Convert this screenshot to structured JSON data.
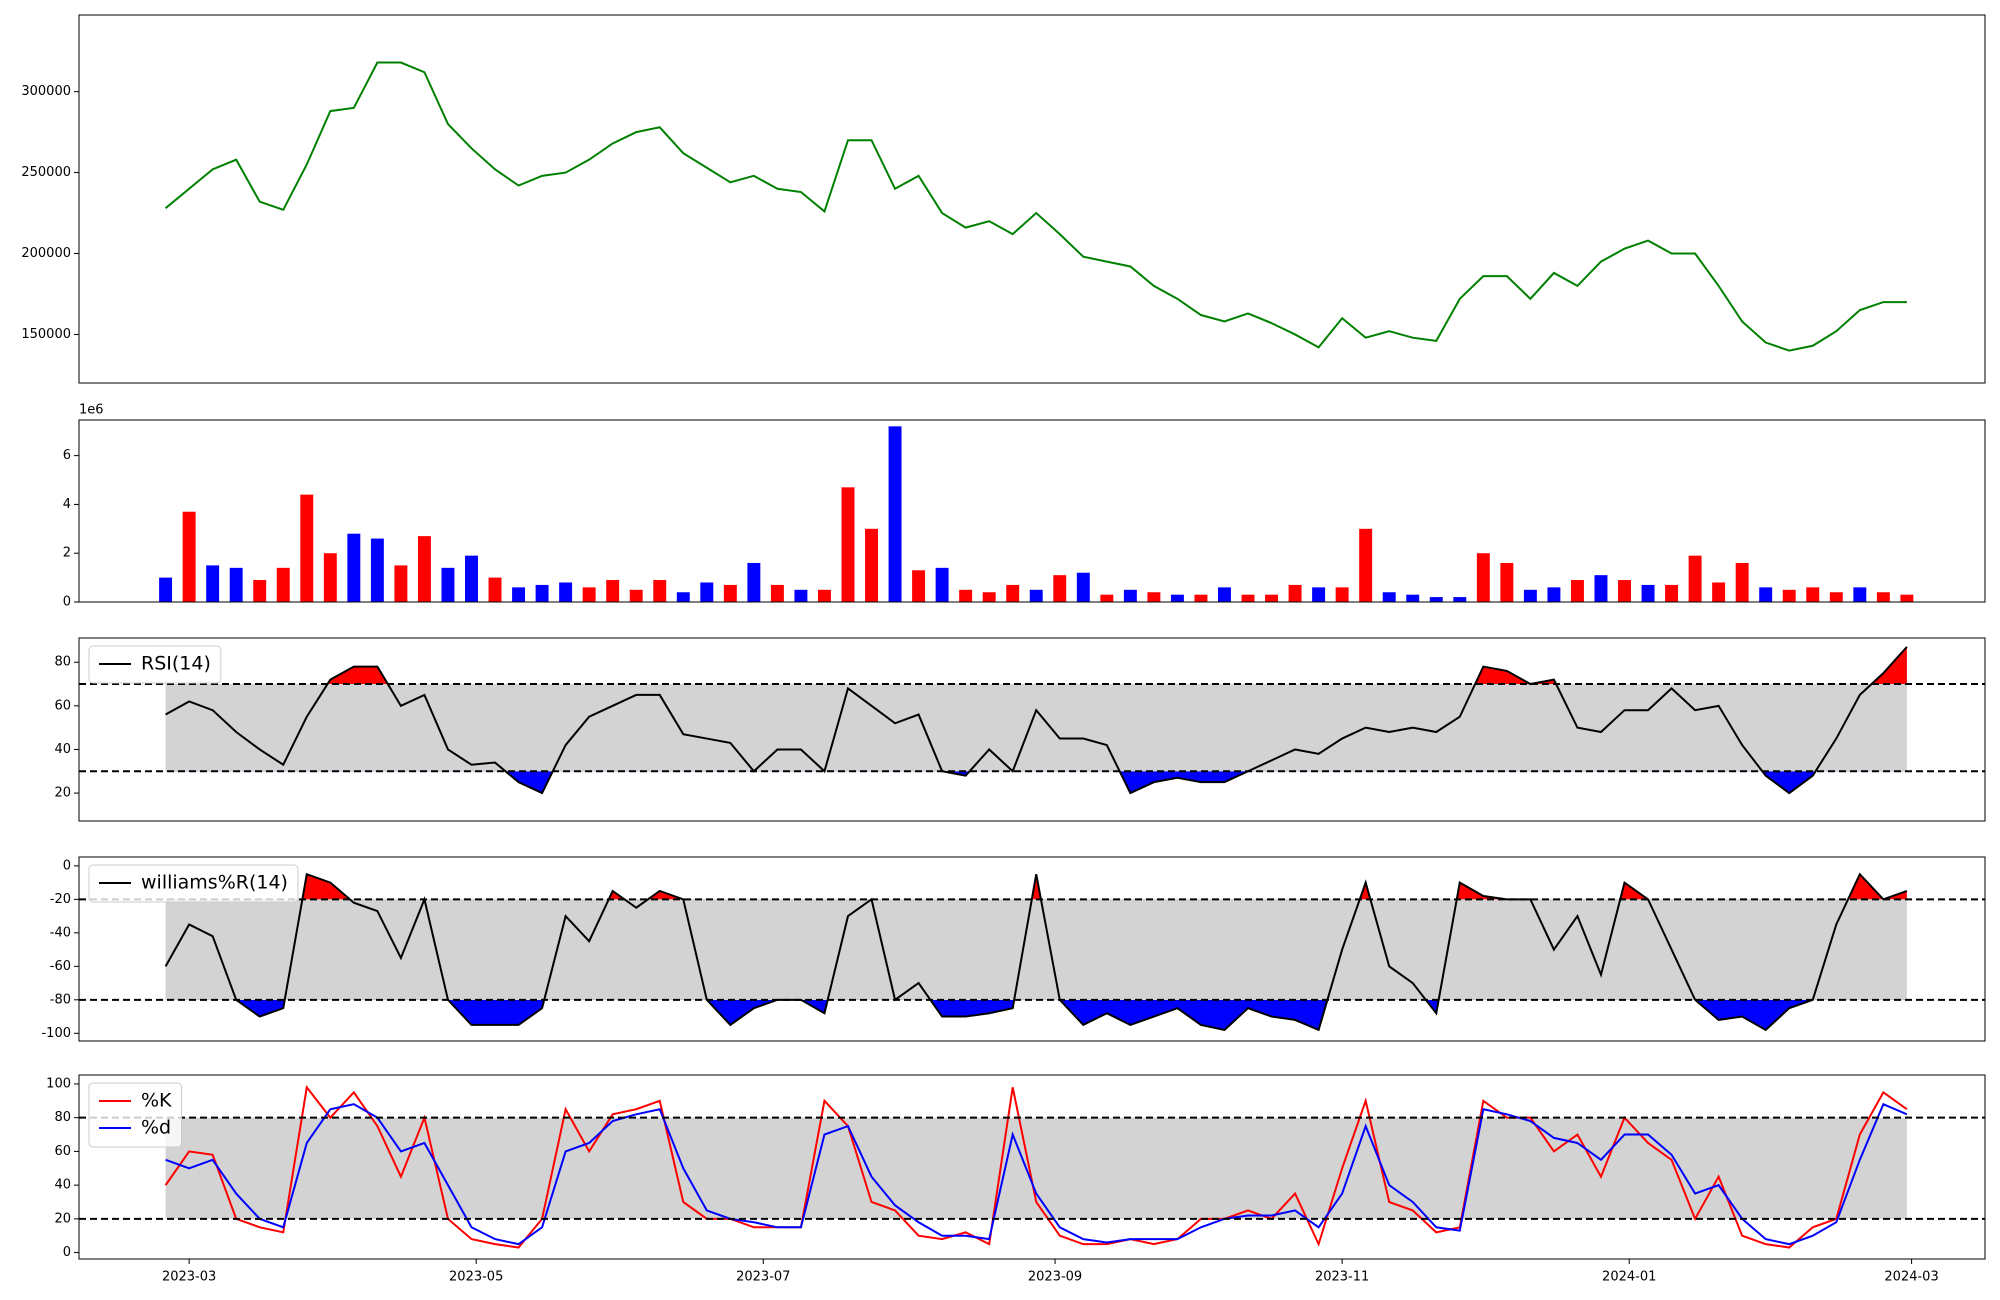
{
  "chart_data": [
    {
      "type": "line",
      "x": [
        19412,
        19417,
        19422,
        19427,
        19432,
        19437,
        19442,
        19447,
        19452,
        19457,
        19462,
        19467,
        19472,
        19477,
        19482,
        19487,
        19492,
        19497,
        19502,
        19507,
        19512,
        19517,
        19522,
        19527,
        19532,
        19537,
        19542,
        19547,
        19552,
        19557,
        19562,
        19567,
        19572,
        19577,
        19582,
        19587,
        19592,
        19597,
        19602,
        19607,
        19612,
        19617,
        19622,
        19627,
        19632,
        19637,
        19642,
        19647,
        19652,
        19657,
        19662,
        19667,
        19672,
        19677,
        19682,
        19687,
        19692,
        19697,
        19702,
        19707,
        19712,
        19717,
        19722,
        19727,
        19732,
        19737,
        19742,
        19747,
        19752,
        19757,
        19762,
        19767,
        19772,
        19777,
        19782
      ],
      "series": [
        {
          "color": "green",
          "values": [
            228000,
            240000,
            252000,
            258000,
            232000,
            227000,
            255000,
            288000,
            290000,
            318000,
            318000,
            312000,
            280000,
            265000,
            252000,
            242000,
            248000,
            250000,
            258000,
            268000,
            275000,
            278000,
            262000,
            253000,
            244000,
            248000,
            240000,
            238000,
            226000,
            270000,
            270000,
            240000,
            248000,
            225000,
            216000,
            220000,
            212000,
            225000,
            212000,
            198000,
            195000,
            192000,
            180000,
            172000,
            162000,
            158000,
            163000,
            157000,
            150000,
            142000,
            160000,
            148000,
            152000,
            148000,
            146000,
            172000,
            186000,
            186000,
            172000,
            188000,
            180000,
            195000,
            203000,
            208000,
            200000,
            200000,
            180000,
            158000,
            145000,
            140000,
            143000,
            152000,
            165000,
            170000,
            170000
          ]
        }
      ],
      "xlim": [
        19393.6,
        19798.6
      ],
      "ylim": [
        120000,
        347370
      ],
      "yticks": [
        150000,
        200000,
        250000,
        300000
      ]
    },
    {
      "type": "bar",
      "x": [
        19412,
        19417,
        19422,
        19427,
        19432,
        19437,
        19442,
        19447,
        19452,
        19457,
        19462,
        19467,
        19472,
        19477,
        19482,
        19487,
        19492,
        19497,
        19502,
        19507,
        19512,
        19517,
        19522,
        19527,
        19532,
        19537,
        19542,
        19547,
        19552,
        19557,
        19562,
        19567,
        19572,
        19577,
        19582,
        19587,
        19592,
        19597,
        19602,
        19607,
        19612,
        19617,
        19622,
        19627,
        19632,
        19637,
        19642,
        19647,
        19652,
        19657,
        19662,
        19667,
        19672,
        19677,
        19682,
        19687,
        19692,
        19697,
        19702,
        19707,
        19712,
        19717,
        19722,
        19727,
        19732,
        19737,
        19742,
        19747,
        19752,
        19757,
        19762,
        19767,
        19772,
        19777,
        19782
      ],
      "values": [
        1.0,
        3.7,
        1.5,
        1.4,
        0.9,
        1.4,
        4.4,
        2.0,
        2.8,
        2.6,
        1.5,
        2.7,
        1.4,
        1.9,
        1.0,
        0.6,
        0.7,
        0.8,
        0.6,
        0.9,
        0.5,
        0.9,
        0.4,
        0.8,
        0.7,
        1.6,
        0.7,
        0.5,
        0.5,
        4.7,
        3.0,
        7.2,
        1.3,
        1.4,
        0.5,
        0.4,
        0.7,
        0.5,
        1.1,
        1.2,
        0.3,
        0.5,
        0.4,
        0.3,
        0.3,
        0.6,
        0.3,
        0.3,
        0.7,
        0.6,
        0.6,
        3.0,
        0.4,
        0.3,
        0.2,
        0.2,
        2.0,
        1.6,
        0.5,
        0.6,
        0.9,
        1.1,
        0.9,
        0.7,
        0.7,
        1.9,
        0.8,
        1.6,
        0.6,
        0.5,
        0.6,
        0.4,
        0.6,
        0.4,
        0.3
      ],
      "colors": [
        "blue",
        "red",
        "blue",
        "blue",
        "red",
        "red",
        "red",
        "red",
        "blue",
        "blue",
        "red",
        "red",
        "blue",
        "blue",
        "red",
        "blue",
        "blue",
        "blue",
        "red",
        "red",
        "red",
        "red",
        "blue",
        "blue",
        "red",
        "blue",
        "red",
        "blue",
        "red",
        "red",
        "red",
        "blue",
        "red",
        "blue",
        "red",
        "red",
        "red",
        "blue",
        "red",
        "blue",
        "red",
        "blue",
        "red",
        "blue",
        "red",
        "blue",
        "red",
        "red",
        "red",
        "blue",
        "red",
        "red",
        "blue",
        "blue",
        "blue",
        "blue",
        "red",
        "red",
        "blue",
        "blue",
        "red",
        "blue",
        "red",
        "blue",
        "red",
        "red",
        "red",
        "red",
        "blue",
        "red",
        "red",
        "red",
        "blue",
        "red",
        "red"
      ],
      "xlim": [
        19393.6,
        19798.6
      ],
      "ylim": [
        0,
        7.46
      ],
      "yticks": [
        0,
        2,
        4,
        6
      ],
      "offset_label": "1e6"
    },
    {
      "type": "line",
      "x": [
        19412,
        19417,
        19422,
        19427,
        19432,
        19437,
        19442,
        19447,
        19452,
        19457,
        19462,
        19467,
        19472,
        19477,
        19482,
        19487,
        19492,
        19497,
        19502,
        19507,
        19512,
        19517,
        19522,
        19527,
        19532,
        19537,
        19542,
        19547,
        19552,
        19557,
        19562,
        19567,
        19572,
        19577,
        19582,
        19587,
        19592,
        19597,
        19602,
        19607,
        19612,
        19617,
        19622,
        19627,
        19632,
        19637,
        19642,
        19647,
        19652,
        19657,
        19662,
        19667,
        19672,
        19677,
        19682,
        19687,
        19692,
        19697,
        19702,
        19707,
        19712,
        19717,
        19722,
        19727,
        19732,
        19737,
        19742,
        19747,
        19752,
        19757,
        19762,
        19767,
        19772,
        19777,
        19782
      ],
      "series": [
        {
          "name": "RSI(14)",
          "color": "black",
          "values": [
            56,
            62,
            58,
            48,
            40,
            33,
            55,
            72,
            78,
            78,
            60,
            65,
            40,
            33,
            34,
            25,
            20,
            42,
            55,
            60,
            65,
            65,
            47,
            45,
            43,
            30,
            40,
            40,
            30,
            68,
            60,
            52,
            56,
            30,
            28,
            40,
            30,
            58,
            45,
            45,
            42,
            20,
            25,
            27,
            25,
            25,
            30,
            35,
            40,
            38,
            45,
            50,
            48,
            50,
            48,
            55,
            78,
            76,
            70,
            72,
            50,
            48,
            58,
            58,
            68,
            58,
            60,
            42,
            28,
            20,
            28,
            45,
            65,
            75,
            87
          ]
        }
      ],
      "xlim": [
        19393.6,
        19798.6
      ],
      "ylim": [
        7.2,
        91.1
      ],
      "yticks": [
        20,
        40,
        60,
        80
      ],
      "thresholds": [
        30,
        70
      ],
      "band_color": "lightgray",
      "fill": {
        "above": "red",
        "below": "blue"
      },
      "legend": "upper left"
    },
    {
      "type": "line",
      "x": [
        19412,
        19417,
        19422,
        19427,
        19432,
        19437,
        19442,
        19447,
        19452,
        19457,
        19462,
        19467,
        19472,
        19477,
        19482,
        19487,
        19492,
        19497,
        19502,
        19507,
        19512,
        19517,
        19522,
        19527,
        19532,
        19537,
        19542,
        19547,
        19552,
        19557,
        19562,
        19567,
        19572,
        19577,
        19582,
        19587,
        19592,
        19597,
        19602,
        19607,
        19612,
        19617,
        19622,
        19627,
        19632,
        19637,
        19642,
        19647,
        19652,
        19657,
        19662,
        19667,
        19672,
        19677,
        19682,
        19687,
        19692,
        19697,
        19702,
        19707,
        19712,
        19717,
        19722,
        19727,
        19732,
        19737,
        19742,
        19747,
        19752,
        19757,
        19762,
        19767,
        19772,
        19777,
        19782
      ],
      "series": [
        {
          "name": "williams%R(14)",
          "color": "black",
          "values": [
            -60,
            -35,
            -42,
            -80,
            -90,
            -85,
            -5,
            -10,
            -22,
            -27,
            -55,
            -20,
            -80,
            -95,
            -95,
            -95,
            -85,
            -30,
            -45,
            -15,
            -25,
            -15,
            -20,
            -80,
            -95,
            -85,
            -80,
            -80,
            -88,
            -30,
            -20,
            -80,
            -70,
            -90,
            -90,
            -88,
            -85,
            -5,
            -80,
            -95,
            -88,
            -95,
            -90,
            -85,
            -95,
            -98,
            -85,
            -90,
            -92,
            -98,
            -50,
            -10,
            -60,
            -70,
            -88,
            -10,
            -18,
            -20,
            -20,
            -50,
            -30,
            -65,
            -10,
            -20,
            -50,
            -80,
            -92,
            -90,
            -98,
            -85,
            -80,
            -35,
            -5,
            -20,
            -15
          ]
        }
      ],
      "xlim": [
        19393.6,
        19798.6
      ],
      "ylim": [
        -104.6,
        5.3
      ],
      "yticks": [
        0,
        -20,
        -40,
        -60,
        -80,
        -100
      ],
      "thresholds": [
        -80,
        -20
      ],
      "band_color": "lightgray",
      "fill": {
        "above": "red",
        "below": "blue"
      },
      "legend": "upper left"
    },
    {
      "type": "line",
      "x": [
        19412,
        19417,
        19422,
        19427,
        19432,
        19437,
        19442,
        19447,
        19452,
        19457,
        19462,
        19467,
        19472,
        19477,
        19482,
        19487,
        19492,
        19497,
        19502,
        19507,
        19512,
        19517,
        19522,
        19527,
        19532,
        19537,
        19542,
        19547,
        19552,
        19557,
        19562,
        19567,
        19572,
        19577,
        19582,
        19587,
        19592,
        19597,
        19602,
        19607,
        19612,
        19617,
        19622,
        19627,
        19632,
        19637,
        19642,
        19647,
        19652,
        19657,
        19662,
        19667,
        19672,
        19677,
        19682,
        19687,
        19692,
        19697,
        19702,
        19707,
        19712,
        19717,
        19722,
        19727,
        19732,
        19737,
        19742,
        19747,
        19752,
        19757,
        19762,
        19767,
        19772,
        19777,
        19782
      ],
      "series": [
        {
          "name": "%K",
          "color": "red",
          "values": [
            40,
            60,
            58,
            20,
            15,
            12,
            98,
            80,
            95,
            75,
            45,
            80,
            20,
            8,
            5,
            3,
            20,
            85,
            60,
            82,
            85,
            90,
            30,
            20,
            20,
            15,
            15,
            15,
            90,
            75,
            30,
            25,
            10,
            8,
            12,
            5,
            98,
            30,
            10,
            5,
            5,
            8,
            5,
            8,
            20,
            20,
            25,
            20,
            35,
            5,
            50,
            90,
            30,
            25,
            12,
            15,
            90,
            80,
            80,
            60,
            70,
            45,
            80,
            65,
            55,
            20,
            45,
            10,
            5,
            3,
            15,
            20,
            70,
            95,
            85
          ]
        },
        {
          "name": "%d",
          "color": "blue",
          "values": [
            55,
            50,
            55,
            35,
            20,
            15,
            65,
            85,
            88,
            80,
            60,
            65,
            40,
            15,
            8,
            5,
            15,
            60,
            65,
            78,
            82,
            85,
            50,
            25,
            20,
            18,
            15,
            15,
            70,
            75,
            45,
            28,
            18,
            10,
            10,
            8,
            70,
            35,
            15,
            8,
            6,
            8,
            8,
            8,
            15,
            20,
            22,
            22,
            25,
            15,
            35,
            75,
            40,
            30,
            15,
            13,
            85,
            82,
            78,
            68,
            65,
            55,
            70,
            70,
            58,
            35,
            40,
            20,
            8,
            5,
            10,
            18,
            55,
            88,
            82
          ]
        }
      ],
      "xlim": [
        19393.6,
        19798.6
      ],
      "ylim": [
        -3.8,
        105.3
      ],
      "yticks": [
        0,
        20,
        40,
        60,
        80,
        100
      ],
      "thresholds": [
        20,
        80
      ],
      "band_color": "lightgray",
      "legend": "upper left",
      "xticks": [
        {
          "value": 19417,
          "label": "2023-03"
        },
        {
          "value": 19478,
          "label": "2023-05"
        },
        {
          "value": 19539,
          "label": "2023-07"
        },
        {
          "value": 19601,
          "label": "2023-09"
        },
        {
          "value": 19662,
          "label": "2023-11"
        },
        {
          "value": 19723,
          "label": "2024-01"
        },
        {
          "value": 19783,
          "label": "2024-03"
        }
      ]
    }
  ]
}
